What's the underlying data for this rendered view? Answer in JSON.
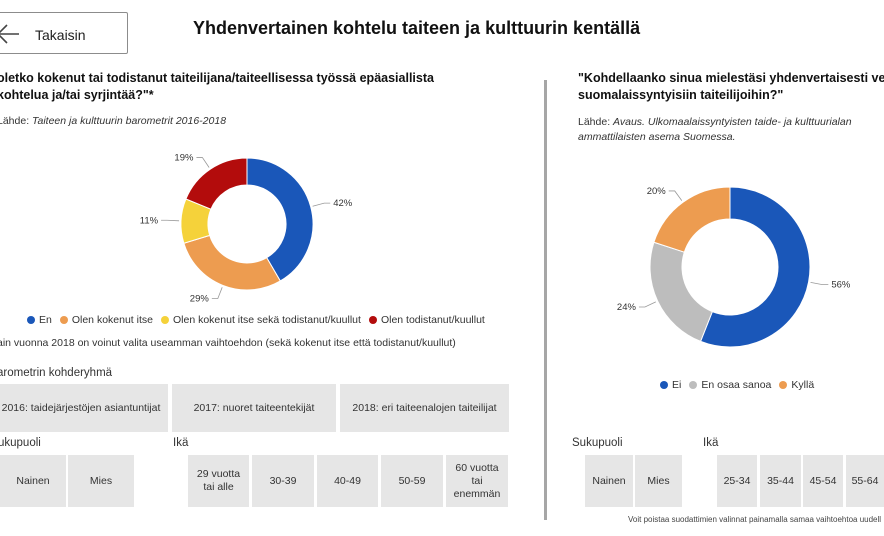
{
  "header": {
    "back_label": "Takaisin",
    "title": "Yhdenvertainen kohtelu taiteen ja kulttuurin kentällä"
  },
  "left": {
    "question_line1": "oletko kokenut tai todistanut taiteilijana/taiteellisessa työssä epäasiallista",
    "question_line2": "kohtelua ja/tai syrjintää?\"*",
    "source_prefix": "Lähde: ",
    "source_text": "Taiteen ja kulttuurin barometrit 2016-2018",
    "note": "ain vuonna 2018 on voinut valita useamman vaihtoehdon (sekä kokenut itse että todistanut/kuullut)",
    "group_label": "arometrin kohderyhmä",
    "groups": [
      "2016: taidejärjestöjen asiantuntijat",
      "2017: nuoret taiteentekijät",
      "2018: eri taiteenalojen taiteilijat"
    ],
    "gender_label": "ukupuoli",
    "genders": [
      "Nainen",
      "Mies"
    ],
    "age_label": "Ikä",
    "ages": [
      "29 vuotta tai alle",
      "30-39",
      "40-49",
      "50-59",
      "60 vuotta tai enemmän"
    ]
  },
  "right": {
    "question_line1": "\"Kohdellaanko sinua mielestäsi yhdenvertaisesti verrattu",
    "question_line2": "suomalaissyntyisiin taiteilijoihin?\"",
    "source_prefix": "Lähde: ",
    "source_line1": "Avaus. Ulkomaalaissyntyisten taide- ja kulttuurialan",
    "source_line2": "ammattilaisten asema Suomessa.",
    "gender_label": "Sukupuoli",
    "genders": [
      "Nainen",
      "Mies"
    ],
    "age_label": "Ikä",
    "ages": [
      "25-34",
      "35-44",
      "45-54",
      "55-64"
    ],
    "footer": "Voit poistaa suodattimien valinnat painamalla samaa vaihtoehtoa uudell"
  },
  "chart_data": [
    {
      "type": "pie",
      "categories": [
        "En",
        "Olen kokenut itse",
        "Olen kokenut itse sekä todistanut/kuullut",
        "Olen todistanut/kuullut"
      ],
      "values": [
        42,
        29,
        11,
        19
      ],
      "labels": [
        "42%",
        "29%",
        "11%",
        "19%"
      ],
      "colors": [
        "#1a57b9",
        "#ed9c50",
        "#f5d23a",
        "#b30c0c"
      ],
      "legend_position": "bottom"
    },
    {
      "type": "pie",
      "categories": [
        "Ei",
        "En osaa sanoa",
        "Kyllä"
      ],
      "values": [
        56,
        24,
        20
      ],
      "labels": [
        "56%",
        "24%",
        "20%"
      ],
      "colors": [
        "#1a57b9",
        "#bdbdbd",
        "#ed9c50"
      ],
      "legend_position": "bottom"
    }
  ]
}
